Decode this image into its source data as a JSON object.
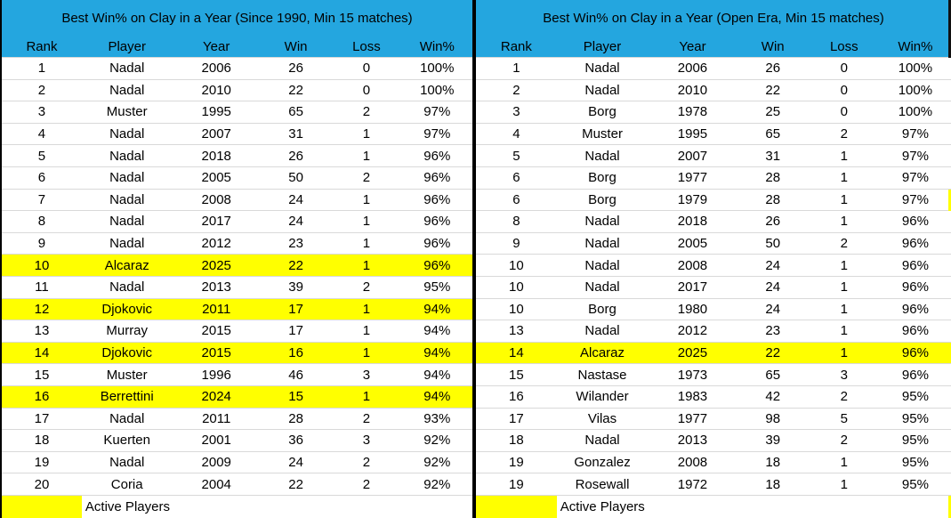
{
  "colors": {
    "header_bg": "#24A6DF",
    "highlight_yellow": "#FFFF00",
    "divider_black": "#000000",
    "gridline": "#D9D9D9",
    "text": "#000000"
  },
  "chart_data": [
    {
      "type": "table",
      "title": "Best Win% on Clay in a Year (Since 1990, Min 15 matches)",
      "columns": [
        "Rank",
        "Player",
        "Year",
        "Win",
        "Loss",
        "Win%"
      ],
      "legend_label": "Active Players",
      "highlight_meaning": "Yellow rows = Active Players",
      "rows": [
        {
          "rank": "1",
          "player": "Nadal",
          "year": "2006",
          "win": "26",
          "loss": "0",
          "win_pct": "100%",
          "highlight": false
        },
        {
          "rank": "2",
          "player": "Nadal",
          "year": "2010",
          "win": "22",
          "loss": "0",
          "win_pct": "100%",
          "highlight": false
        },
        {
          "rank": "3",
          "player": "Muster",
          "year": "1995",
          "win": "65",
          "loss": "2",
          "win_pct": "97%",
          "highlight": false
        },
        {
          "rank": "4",
          "player": "Nadal",
          "year": "2007",
          "win": "31",
          "loss": "1",
          "win_pct": "97%",
          "highlight": false
        },
        {
          "rank": "5",
          "player": "Nadal",
          "year": "2018",
          "win": "26",
          "loss": "1",
          "win_pct": "96%",
          "highlight": false
        },
        {
          "rank": "6",
          "player": "Nadal",
          "year": "2005",
          "win": "50",
          "loss": "2",
          "win_pct": "96%",
          "highlight": false
        },
        {
          "rank": "7",
          "player": "Nadal",
          "year": "2008",
          "win": "24",
          "loss": "1",
          "win_pct": "96%",
          "highlight": false
        },
        {
          "rank": "8",
          "player": "Nadal",
          "year": "2017",
          "win": "24",
          "loss": "1",
          "win_pct": "96%",
          "highlight": false
        },
        {
          "rank": "9",
          "player": "Nadal",
          "year": "2012",
          "win": "23",
          "loss": "1",
          "win_pct": "96%",
          "highlight": false
        },
        {
          "rank": "10",
          "player": "Alcaraz",
          "year": "2025",
          "win": "22",
          "loss": "1",
          "win_pct": "96%",
          "highlight": true
        },
        {
          "rank": "11",
          "player": "Nadal",
          "year": "2013",
          "win": "39",
          "loss": "2",
          "win_pct": "95%",
          "highlight": false
        },
        {
          "rank": "12",
          "player": "Djokovic",
          "year": "2011",
          "win": "17",
          "loss": "1",
          "win_pct": "94%",
          "highlight": true
        },
        {
          "rank": "13",
          "player": "Murray",
          "year": "2015",
          "win": "17",
          "loss": "1",
          "win_pct": "94%",
          "highlight": false
        },
        {
          "rank": "14",
          "player": "Djokovic",
          "year": "2015",
          "win": "16",
          "loss": "1",
          "win_pct": "94%",
          "highlight": true
        },
        {
          "rank": "15",
          "player": "Muster",
          "year": "1996",
          "win": "46",
          "loss": "3",
          "win_pct": "94%",
          "highlight": false
        },
        {
          "rank": "16",
          "player": "Berrettini",
          "year": "2024",
          "win": "15",
          "loss": "1",
          "win_pct": "94%",
          "highlight": true
        },
        {
          "rank": "17",
          "player": "Nadal",
          "year": "2011",
          "win": "28",
          "loss": "2",
          "win_pct": "93%",
          "highlight": false
        },
        {
          "rank": "18",
          "player": "Kuerten",
          "year": "2001",
          "win": "36",
          "loss": "3",
          "win_pct": "92%",
          "highlight": false
        },
        {
          "rank": "19",
          "player": "Nadal",
          "year": "2009",
          "win": "24",
          "loss": "2",
          "win_pct": "92%",
          "highlight": false
        },
        {
          "rank": "20",
          "player": "Coria",
          "year": "2004",
          "win": "22",
          "loss": "2",
          "win_pct": "92%",
          "highlight": false
        }
      ]
    },
    {
      "type": "table",
      "title": "Best Win% on Clay in a Year (Open Era, Min 15 matches)",
      "columns": [
        "Rank",
        "Player",
        "Year",
        "Win",
        "Loss",
        "Win%"
      ],
      "legend_label": "Active Players",
      "highlight_meaning": "Yellow rows = Active Players",
      "rows": [
        {
          "rank": "1",
          "player": "Nadal",
          "year": "2006",
          "win": "26",
          "loss": "0",
          "win_pct": "100%",
          "highlight": false
        },
        {
          "rank": "2",
          "player": "Nadal",
          "year": "2010",
          "win": "22",
          "loss": "0",
          "win_pct": "100%",
          "highlight": false
        },
        {
          "rank": "3",
          "player": "Borg",
          "year": "1978",
          "win": "25",
          "loss": "0",
          "win_pct": "100%",
          "highlight": false
        },
        {
          "rank": "4",
          "player": "Muster",
          "year": "1995",
          "win": "65",
          "loss": "2",
          "win_pct": "97%",
          "highlight": false
        },
        {
          "rank": "5",
          "player": "Nadal",
          "year": "2007",
          "win": "31",
          "loss": "1",
          "win_pct": "97%",
          "highlight": false
        },
        {
          "rank": "6",
          "player": "Borg",
          "year": "1977",
          "win": "28",
          "loss": "1",
          "win_pct": "97%",
          "highlight": false
        },
        {
          "rank": "6",
          "player": "Borg",
          "year": "1979",
          "win": "28",
          "loss": "1",
          "win_pct": "97%",
          "highlight": false
        },
        {
          "rank": "8",
          "player": "Nadal",
          "year": "2018",
          "win": "26",
          "loss": "1",
          "win_pct": "96%",
          "highlight": false
        },
        {
          "rank": "9",
          "player": "Nadal",
          "year": "2005",
          "win": "50",
          "loss": "2",
          "win_pct": "96%",
          "highlight": false
        },
        {
          "rank": "10",
          "player": "Nadal",
          "year": "2008",
          "win": "24",
          "loss": "1",
          "win_pct": "96%",
          "highlight": false
        },
        {
          "rank": "10",
          "player": "Nadal",
          "year": "2017",
          "win": "24",
          "loss": "1",
          "win_pct": "96%",
          "highlight": false
        },
        {
          "rank": "10",
          "player": "Borg",
          "year": "1980",
          "win": "24",
          "loss": "1",
          "win_pct": "96%",
          "highlight": false
        },
        {
          "rank": "13",
          "player": "Nadal",
          "year": "2012",
          "win": "23",
          "loss": "1",
          "win_pct": "96%",
          "highlight": false
        },
        {
          "rank": "14",
          "player": "Alcaraz",
          "year": "2025",
          "win": "22",
          "loss": "1",
          "win_pct": "96%",
          "highlight": true
        },
        {
          "rank": "15",
          "player": "Nastase",
          "year": "1973",
          "win": "65",
          "loss": "3",
          "win_pct": "96%",
          "highlight": false
        },
        {
          "rank": "16",
          "player": "Wilander",
          "year": "1983",
          "win": "42",
          "loss": "2",
          "win_pct": "95%",
          "highlight": false
        },
        {
          "rank": "17",
          "player": "Vilas",
          "year": "1977",
          "win": "98",
          "loss": "5",
          "win_pct": "95%",
          "highlight": false
        },
        {
          "rank": "18",
          "player": "Nadal",
          "year": "2013",
          "win": "39",
          "loss": "2",
          "win_pct": "95%",
          "highlight": false
        },
        {
          "rank": "19",
          "player": "Gonzalez",
          "year": "2008",
          "win": "18",
          "loss": "1",
          "win_pct": "95%",
          "highlight": false
        },
        {
          "rank": "19",
          "player": "Rosewall",
          "year": "1972",
          "win": "18",
          "loss": "1",
          "win_pct": "95%",
          "highlight": false
        }
      ]
    }
  ]
}
